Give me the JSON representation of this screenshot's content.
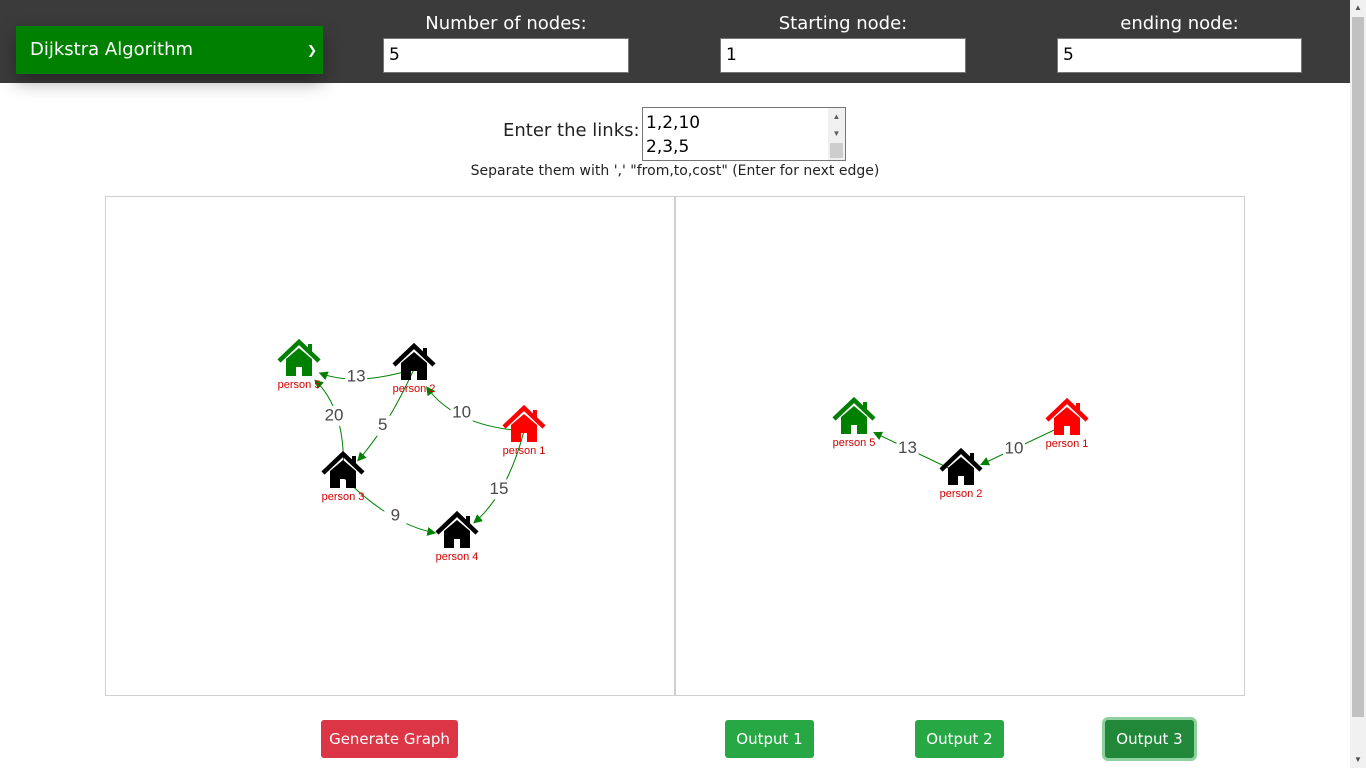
{
  "topbar": {
    "algorithm": "Dijkstra Algorithm",
    "num_nodes_label": "Number of nodes:",
    "num_nodes_value": "5",
    "start_label": "Starting node:",
    "start_value": "1",
    "end_label": "ending node:",
    "end_value": "5"
  },
  "links": {
    "label": "Enter the links:",
    "visible_text": "1,2,10\n2,3,5",
    "hint": "Separate them with ',' \"from,to,cost\" (Enter for next edge)"
  },
  "colors": {
    "topbar": "#3b3b3b",
    "algo_select": "#008000",
    "start_node": "#ff0000",
    "end_node": "#008000",
    "other_node": "#000000",
    "edge": "#008000",
    "node_label": "#d20000",
    "btn_danger": "#dc3545",
    "btn_success": "#28a745"
  },
  "input_graph": {
    "nodes": [
      {
        "id": 1,
        "label": "person 1",
        "role": "start"
      },
      {
        "id": 2,
        "label": "person 2",
        "role": "normal"
      },
      {
        "id": 3,
        "label": "person 3",
        "role": "normal"
      },
      {
        "id": 4,
        "label": "person 4",
        "role": "normal"
      },
      {
        "id": 5,
        "label": "person 5",
        "role": "end"
      }
    ],
    "edges": [
      {
        "from": 1,
        "to": 2,
        "cost": "10"
      },
      {
        "from": 2,
        "to": 3,
        "cost": "5"
      },
      {
        "from": 1,
        "to": 4,
        "cost": "15"
      },
      {
        "from": 3,
        "to": 4,
        "cost": "9"
      },
      {
        "from": 3,
        "to": 5,
        "cost": "20"
      },
      {
        "from": 2,
        "to": 5,
        "cost": "13"
      }
    ]
  },
  "output_graph": {
    "nodes": [
      {
        "id": 1,
        "label": "person 1",
        "role": "start"
      },
      {
        "id": 2,
        "label": "person 2",
        "role": "normal"
      },
      {
        "id": 5,
        "label": "person 5",
        "role": "end"
      }
    ],
    "edges": [
      {
        "from": 1,
        "to": 2,
        "cost": "10"
      },
      {
        "from": 2,
        "to": 5,
        "cost": "13"
      }
    ]
  },
  "buttons": {
    "generate": "Generate Graph",
    "output1": "Output 1",
    "output2": "Output 2",
    "output3": "Output 3"
  },
  "icons": {
    "node": "house-icon",
    "select_arrow": "chevron-down-icon"
  }
}
